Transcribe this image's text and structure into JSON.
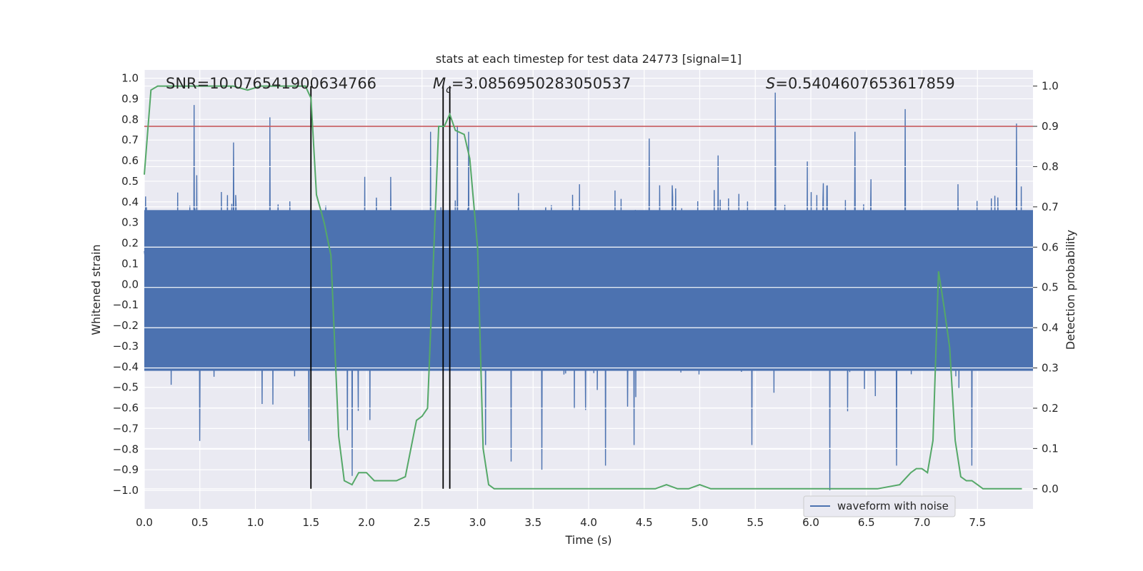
{
  "chart_data": {
    "type": "line",
    "title": "stats at each timestep for test data 24773 [signal=1]",
    "xlabel": "Time (s)",
    "ylabel": "Whitened strain",
    "ylabel_right": "Detection probability",
    "xlim": [
      0.0,
      8.0
    ],
    "ylim": [
      -1.09,
      1.04
    ],
    "ylim_right": [
      -0.05,
      1.04
    ],
    "x_ticks": [
      "0.0",
      "0.5",
      "1.0",
      "1.5",
      "2.0",
      "2.5",
      "3.0",
      "3.5",
      "4.0",
      "4.5",
      "5.0",
      "5.5",
      "6.0",
      "6.5",
      "7.0",
      "7.5"
    ],
    "y_ticks": [
      "1.0",
      "0.9",
      "0.8",
      "0.7",
      "0.6",
      "0.5",
      "0.4",
      "0.3",
      "0.2",
      "0.1",
      "0.0",
      "-0.1",
      "-0.2",
      "-0.3",
      "-0.4",
      "-0.5",
      "-0.6",
      "-0.7",
      "-0.8",
      "-0.9",
      "-1.0"
    ],
    "y_ticks_right": [
      "1.0",
      "0.9",
      "0.8",
      "0.7",
      "0.6",
      "0.5",
      "0.4",
      "0.3",
      "0.2",
      "0.1",
      "0.0"
    ],
    "legend": {
      "position": "lower-right",
      "entries": [
        "waveform with noise"
      ]
    },
    "annotations": {
      "snr": "SNR=10.076541900634766",
      "mc": "=3.0856950283050537",
      "mc_symbol": "M",
      "mc_sub": "c",
      "s": "=0.5404607653617859",
      "s_symbol": "S"
    },
    "threshold": 0.9,
    "vertical_lines": [
      1.5,
      2.69,
      2.75
    ],
    "colors": {
      "waveform": "#4c72b0",
      "probability": "#55a868",
      "threshold": "#c44e52",
      "vlines": "#000000",
      "background": "#eaeaf2"
    },
    "series": [
      {
        "name": "Detection probability",
        "axis": "right",
        "x": [
          0.0,
          0.06,
          0.12,
          0.2,
          0.3,
          0.4,
          0.5,
          0.6,
          0.7,
          0.8,
          0.93,
          1.05,
          1.15,
          1.25,
          1.35,
          1.45,
          1.5,
          1.55,
          1.62,
          1.68,
          1.75,
          1.8,
          1.87,
          1.93,
          2.0,
          2.07,
          2.13,
          2.2,
          2.27,
          2.35,
          2.4,
          2.45,
          2.5,
          2.55,
          2.6,
          2.65,
          2.7,
          2.75,
          2.8,
          2.88,
          2.93,
          3.0,
          3.05,
          3.1,
          3.15,
          3.2,
          3.25,
          3.3,
          3.4,
          3.5,
          3.6,
          3.8,
          4.0,
          4.2,
          4.4,
          4.5,
          4.6,
          4.7,
          4.8,
          4.9,
          5.0,
          5.1,
          5.2,
          5.4,
          5.6,
          5.8,
          6.0,
          6.2,
          6.4,
          6.6,
          6.8,
          6.9,
          6.95,
          7.0,
          7.05,
          7.1,
          7.15,
          7.2,
          7.25,
          7.3,
          7.35,
          7.4,
          7.45,
          7.5,
          7.55,
          7.6,
          7.7,
          7.8,
          7.9
        ],
        "values": [
          0.78,
          0.99,
          1.0,
          1.0,
          1.0,
          1.0,
          1.0,
          1.0,
          1.0,
          1.0,
          0.99,
          1.0,
          1.0,
          1.0,
          1.0,
          1.0,
          0.97,
          0.73,
          0.66,
          0.58,
          0.13,
          0.02,
          0.01,
          0.04,
          0.04,
          0.02,
          0.02,
          0.02,
          0.02,
          0.03,
          0.1,
          0.17,
          0.18,
          0.2,
          0.55,
          0.9,
          0.9,
          0.93,
          0.89,
          0.88,
          0.82,
          0.6,
          0.1,
          0.01,
          0.0,
          0.0,
          0.0,
          0.0,
          0.0,
          0.0,
          0.0,
          0.0,
          0.0,
          0.0,
          0.0,
          0.0,
          0.0,
          0.01,
          0.0,
          0.0,
          0.01,
          0.0,
          0.0,
          0.0,
          0.0,
          0.0,
          0.0,
          0.0,
          0.0,
          0.0,
          0.01,
          0.04,
          0.05,
          0.05,
          0.04,
          0.12,
          0.54,
          0.45,
          0.35,
          0.12,
          0.03,
          0.02,
          0.02,
          0.01,
          0.0,
          0.0,
          0.0,
          0.0,
          0.0
        ]
      },
      {
        "name": "waveform with noise",
        "axis": "left",
        "samples": 2048,
        "envelope": {
          "core": [
            -0.42,
            0.36
          ],
          "spikes": [
            {
              "x": 0.45,
              "y": 0.87
            },
            {
              "x": 0.5,
              "y": -0.76
            },
            {
              "x": 1.13,
              "y": 0.81
            },
            {
              "x": 1.48,
              "y": -0.76
            },
            {
              "x": 1.87,
              "y": -0.93
            },
            {
              "x": 2.82,
              "y": 0.77
            },
            {
              "x": 3.3,
              "y": -0.86
            },
            {
              "x": 3.58,
              "y": -0.9
            },
            {
              "x": 4.15,
              "y": -0.88
            },
            {
              "x": 5.68,
              "y": 0.93
            },
            {
              "x": 6.17,
              "y": -1.0
            },
            {
              "x": 6.77,
              "y": -0.88
            },
            {
              "x": 6.85,
              "y": 0.85
            },
            {
              "x": 7.85,
              "y": 0.78
            },
            {
              "x": 7.45,
              "y": -0.88
            }
          ]
        }
      }
    ]
  }
}
